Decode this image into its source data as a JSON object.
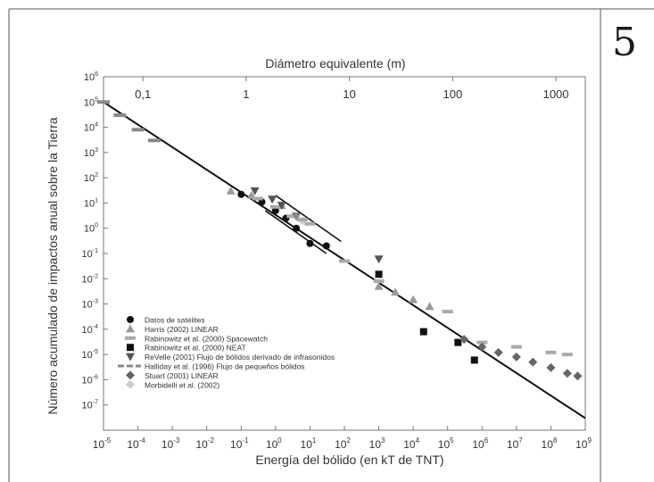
{
  "page": {
    "number": "5"
  },
  "chart_data": {
    "type": "scatter",
    "x_axis_label": "Energía del bólido (en  kT de TNT)",
    "y_axis_label": "Número acumulado de impactos anual sobre la Tierra",
    "top_axis_label": "Diámetro equivalente (m)",
    "x_scale": "log",
    "y_scale": "log",
    "xlim": [
      1e-05,
      1000000000.0
    ],
    "ylim": [
      1e-08,
      1000000.0
    ],
    "x_ticks": [
      {
        "value": 1e-05,
        "base": "10",
        "exp": "-5"
      },
      {
        "value": 0.0001,
        "base": "10",
        "exp": "-4"
      },
      {
        "value": 0.001,
        "base": "10",
        "exp": "-3"
      },
      {
        "value": 0.01,
        "base": "10",
        "exp": "-2"
      },
      {
        "value": 0.1,
        "base": "10",
        "exp": "-1"
      },
      {
        "value": 1.0,
        "base": "10",
        "exp": "0"
      },
      {
        "value": 10.0,
        "base": "10",
        "exp": "1"
      },
      {
        "value": 100.0,
        "base": "10",
        "exp": "2"
      },
      {
        "value": 1000.0,
        "base": "10",
        "exp": "3"
      },
      {
        "value": 10000.0,
        "base": "10",
        "exp": "4"
      },
      {
        "value": 100000.0,
        "base": "10",
        "exp": "5"
      },
      {
        "value": 1000000.0,
        "base": "10",
        "exp": "6"
      },
      {
        "value": 10000000.0,
        "base": "10",
        "exp": "7"
      },
      {
        "value": 100000000.0,
        "base": "10",
        "exp": "8"
      },
      {
        "value": 1000000000.0,
        "base": "10",
        "exp": "9"
      }
    ],
    "y_ticks": [
      {
        "value": 1000000.0,
        "base": "10",
        "exp": "6"
      },
      {
        "value": 100000.0,
        "base": "10",
        "exp": "5"
      },
      {
        "value": 10000.0,
        "base": "10",
        "exp": "4"
      },
      {
        "value": 1000.0,
        "base": "10",
        "exp": "3"
      },
      {
        "value": 100.0,
        "base": "10",
        "exp": "2"
      },
      {
        "value": 10.0,
        "base": "10",
        "exp": "1"
      },
      {
        "value": 1.0,
        "base": "10",
        "exp": "0"
      },
      {
        "value": 0.1,
        "base": "10",
        "exp": "-1"
      },
      {
        "value": 0.01,
        "base": "10",
        "exp": "-2"
      },
      {
        "value": 0.001,
        "base": "10",
        "exp": "-3"
      },
      {
        "value": 0.0001,
        "base": "10",
        "exp": "-4"
      },
      {
        "value": 1e-05,
        "base": "10",
        "exp": "-5"
      },
      {
        "value": 1e-06,
        "base": "10",
        "exp": "-6"
      },
      {
        "value": 1e-07,
        "base": "10",
        "exp": "-7"
      }
    ],
    "top_ticks": [
      {
        "label": "0,1",
        "energy": 0.00014
      },
      {
        "label": "1",
        "energy": 0.14
      },
      {
        "label": "10",
        "energy": 140
      },
      {
        "label": "100",
        "energy": 140000.0
      },
      {
        "label": "1000",
        "energy": 140000000.0
      }
    ],
    "grid": false,
    "legend_position": "bottom-left",
    "fit_line": {
      "points": [
        [
          1e-05,
          100000.0
        ],
        [
          1000000000.0,
          3e-08
        ]
      ],
      "color": "#111111"
    },
    "series": [
      {
        "name": "Datos de satélites",
        "marker": "circle",
        "color": "#111111",
        "points": [
          [
            0.1,
            22
          ],
          [
            0.4,
            11
          ],
          [
            1,
            5
          ],
          [
            2,
            2.5
          ],
          [
            4,
            1
          ],
          [
            10,
            0.25
          ],
          [
            30,
            0.2
          ]
        ]
      },
      {
        "name": "Harris (2002) LINEAR",
        "marker": "triangle-up",
        "color": "#999999",
        "points": [
          [
            0.05,
            30
          ],
          [
            0.2,
            20
          ],
          [
            1.5,
            8
          ],
          [
            1000,
            0.005
          ],
          [
            3000,
            0.003
          ],
          [
            10000,
            0.0015
          ],
          [
            30000,
            0.0008
          ]
        ]
      },
      {
        "name": "Rabinowitz et al. (2000) Spacewatch",
        "marker": "dash",
        "color": "#aaaaaa",
        "points": [
          [
            0.3,
            15
          ],
          [
            1,
            7
          ],
          [
            3,
            3
          ],
          [
            6,
            2.2
          ],
          [
            10,
            1.5
          ],
          [
            100,
            0.05
          ],
          [
            1000,
            0.008
          ],
          [
            100000,
            0.0005
          ],
          [
            1000000,
            3e-05
          ],
          [
            10000000,
            2e-05
          ],
          [
            100000000,
            1.2e-05
          ],
          [
            300000000,
            1e-05
          ]
        ]
      },
      {
        "name": "Rabinowitz et al. (2000) NEAT",
        "marker": "square",
        "color": "#111111",
        "points": [
          [
            1000,
            0.015
          ],
          [
            20000,
            8e-05
          ],
          [
            200000,
            3e-05
          ],
          [
            600000,
            6e-06
          ]
        ]
      },
      {
        "name": "ReVelle (2001) Flujo de bólidos derivado de infrasonidos",
        "marker": "triangle-down",
        "color": "#555555",
        "points": [
          [
            0.25,
            30
          ],
          [
            0.8,
            14
          ],
          [
            1.5,
            8
          ],
          [
            4,
            3
          ],
          [
            1000,
            0.06
          ]
        ]
      },
      {
        "name": "Halliday et al. (1996) Flujo de pequeños bólidos",
        "marker": "dashed-line",
        "color": "#888888",
        "points": [
          [
            1e-05,
            100000
          ],
          [
            3e-05,
            30000
          ],
          [
            0.0001,
            8000
          ],
          [
            0.0003,
            3000
          ]
        ]
      },
      {
        "name": "Stuart (2001) LINEAR",
        "marker": "diamond",
        "color": "#666666",
        "points": [
          [
            300000,
            4e-05
          ],
          [
            1000000,
            2e-05
          ],
          [
            3000000,
            1.2e-05
          ],
          [
            10000000,
            8e-06
          ],
          [
            30000000,
            5e-06
          ],
          [
            100000000,
            3e-06
          ],
          [
            300000000,
            1.8e-06
          ],
          [
            600000000,
            1.4e-06
          ]
        ]
      },
      {
        "name": "Morbidelli et al. (2002)",
        "marker": "diamond-open",
        "color": "#aaaaaa",
        "points": [
          [
            4,
            3
          ],
          [
            6,
            2
          ]
        ]
      }
    ],
    "fit_segments": [
      {
        "points": [
          [
            0.5,
            5
          ],
          [
            30,
            0.1
          ]
        ]
      },
      {
        "points": [
          [
            1,
            20
          ],
          [
            80,
            0.3
          ]
        ]
      }
    ]
  }
}
